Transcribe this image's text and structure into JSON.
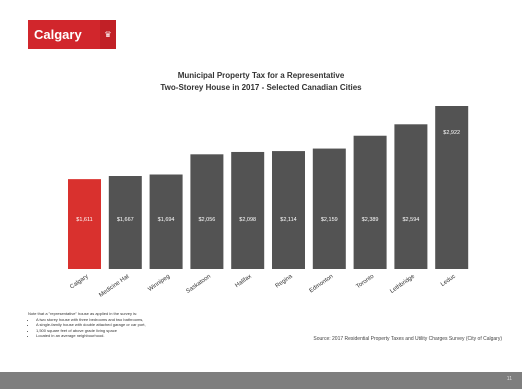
{
  "logo": {
    "text": "Calgary",
    "mark": "♛"
  },
  "title": {
    "line1": "Municipal Property Tax for a Representative",
    "line2": "Two-Storey House in 2017 - Selected Canadian Cities"
  },
  "chart_data": {
    "type": "bar",
    "categories": [
      "Calgary",
      "Medicine Hat",
      "Winnipeg",
      "Saskatoon",
      "Halifax",
      "Regina",
      "Edmonton",
      "Toronto",
      "Lethbridge",
      "Leduc"
    ],
    "values": [
      1611,
      1667,
      1694,
      2056,
      2098,
      2114,
      2159,
      2389,
      2594,
      2922
    ],
    "labels": [
      "$1,611",
      "$1,667",
      "$1,694",
      "$2,056",
      "$2,098",
      "$2,114",
      "$2,159",
      "$2,389",
      "$2,594",
      "$2,922"
    ],
    "colors": {
      "highlight": "#d9312e",
      "default": "#535353"
    },
    "highlight_index": 0
  },
  "note": {
    "heading": "Note that a \"representative\" house as applied in the survey is:",
    "items": [
      "A two storey house with three bedrooms and two bathrooms,",
      "A single-family house with double attached garage or car port,",
      "1,500 square feet of above grade living space",
      "Located in an average neighbourhood."
    ]
  },
  "source": "Source: 2017 Residential Property Taxes and Utility Charges Survey (City of Calgary)",
  "footer": {
    "page": "11"
  }
}
